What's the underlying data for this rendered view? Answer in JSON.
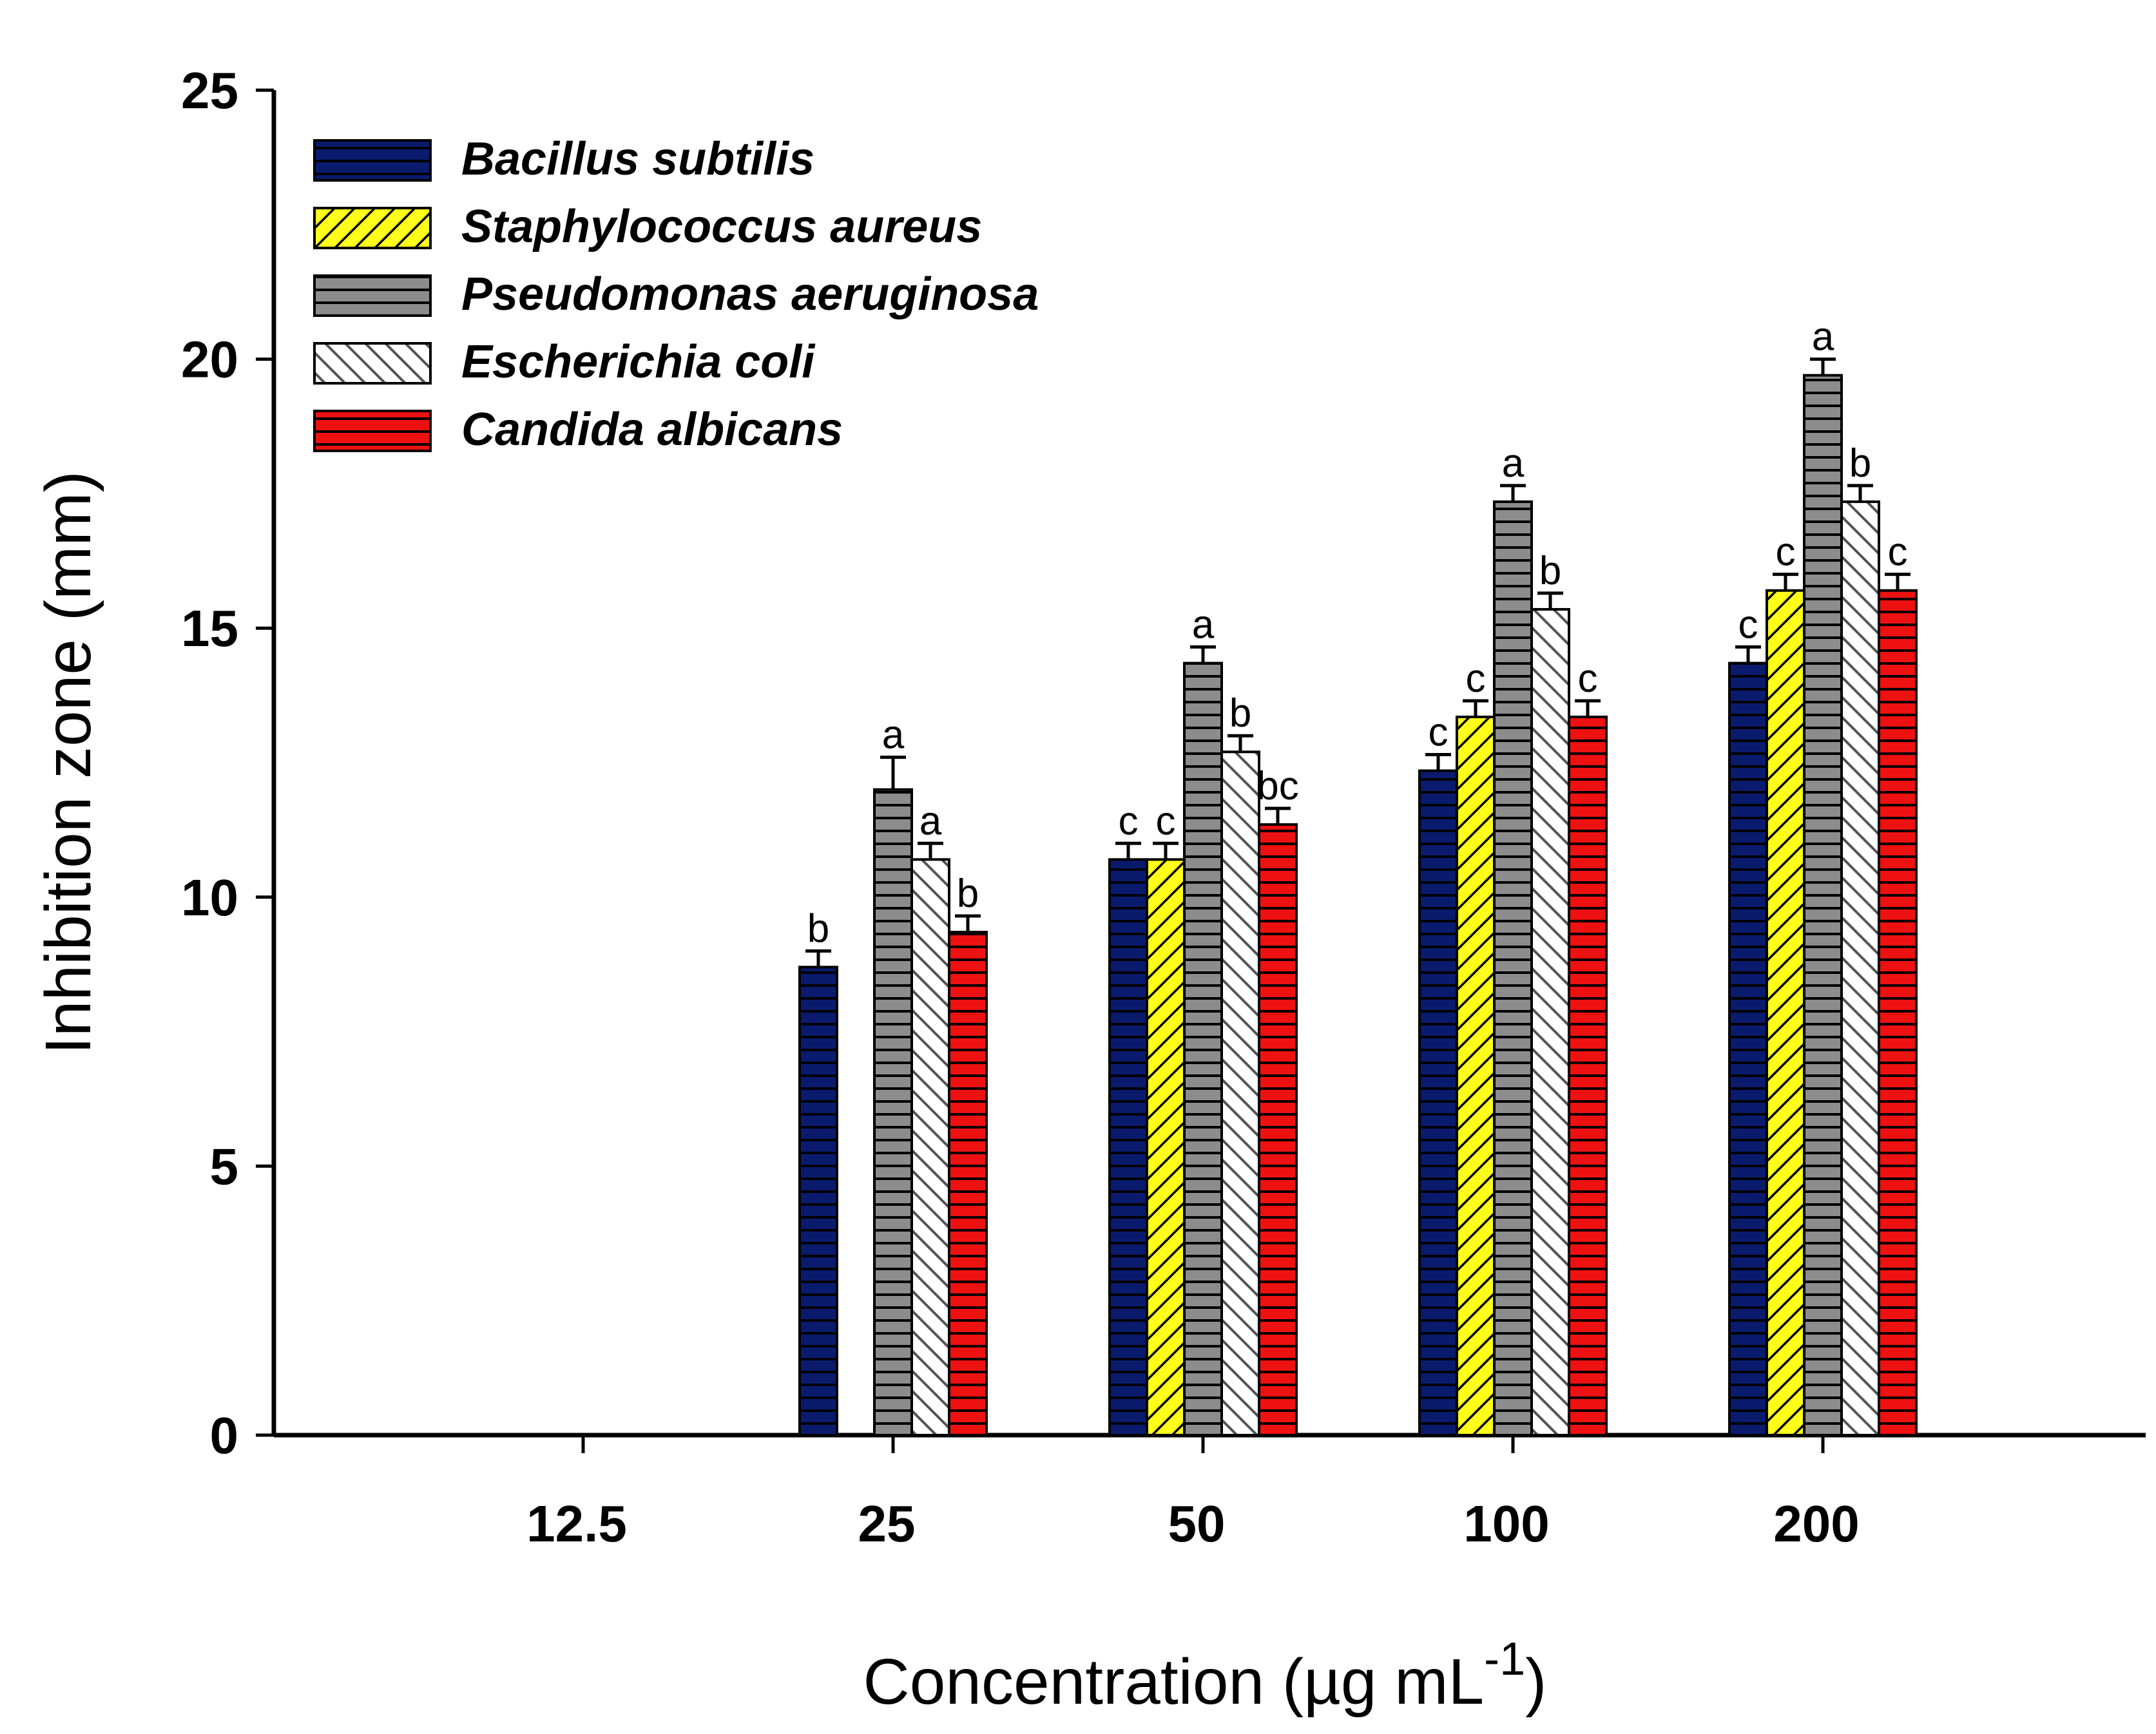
{
  "chart_data": {
    "type": "bar",
    "title": "",
    "xlabel": "Concentration (µg mL",
    "xlabel_superscript": "-1",
    "xlabel_suffix": ")",
    "ylabel": "Inhibition zone (mm)",
    "ylim": [
      0,
      25
    ],
    "yticks": [
      0,
      5,
      10,
      15,
      20,
      25
    ],
    "categories": [
      "12.5",
      "25",
      "50",
      "100",
      "200"
    ],
    "legend_position": "top-left",
    "series": [
      {
        "name": "Bacillus subtilis",
        "color": "#0a1b6e",
        "pattern": "horizontal",
        "values": [
          0,
          8.7,
          10.7,
          12.35,
          14.35
        ],
        "errors": [
          0,
          0.3,
          0.3,
          0.3,
          0.3
        ],
        "labels": [
          "",
          "b",
          "c",
          "c",
          "c"
        ]
      },
      {
        "name": "Staphylococcus aureus",
        "color": "#ffff1a",
        "pattern": "diagonal",
        "values": [
          0,
          0,
          10.7,
          13.35,
          15.7
        ],
        "errors": [
          0,
          0,
          0.3,
          0.3,
          0.3
        ],
        "labels": [
          "",
          "",
          "c",
          "c",
          "c"
        ]
      },
      {
        "name": "Pseudomonas aeruginosa",
        "color": "#8c8c8c",
        "pattern": "horizontal",
        "values": [
          0,
          12.0,
          14.35,
          17.35,
          19.7
        ],
        "errors": [
          0,
          0.6,
          0.3,
          0.3,
          0.3
        ],
        "labels": [
          "",
          "a",
          "a",
          "a",
          "a"
        ]
      },
      {
        "name": "Escherichia coli",
        "color": "#e0e0e0",
        "pattern": "back-diagonal",
        "values": [
          0,
          10.7,
          12.7,
          15.35,
          17.35
        ],
        "errors": [
          0,
          0.3,
          0.3,
          0.3,
          0.3
        ],
        "labels": [
          "",
          "a",
          "b",
          "b",
          "b"
        ]
      },
      {
        "name": "Candida albicans",
        "color": "#ee1111",
        "pattern": "horizontal",
        "values": [
          0,
          9.35,
          11.35,
          13.35,
          15.7
        ],
        "errors": [
          0,
          0.3,
          0.3,
          0.3,
          0.3
        ],
        "labels": [
          "",
          "b",
          "bc",
          "c",
          "c"
        ]
      }
    ]
  }
}
